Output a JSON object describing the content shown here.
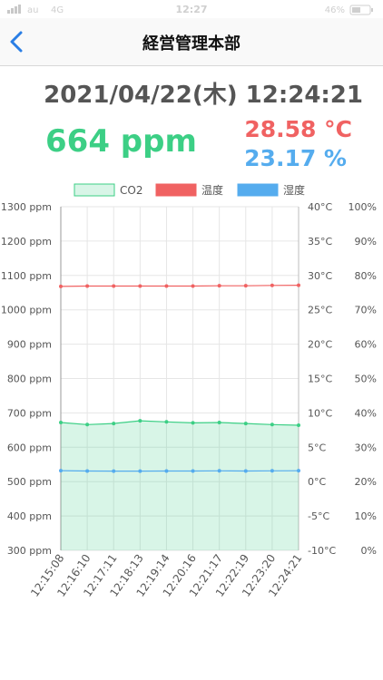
{
  "status_bar": {
    "carrier": "au",
    "network": "4G",
    "time": "12:27",
    "battery": "46%"
  },
  "nav": {
    "title": "経営管理本部"
  },
  "reading": {
    "datetime": "2021/04/22(木) 12:24:21",
    "co2": "664 ppm",
    "temperature": "28.58 °C",
    "humidity": "23.17 %"
  },
  "colors": {
    "co2": "#3ccf85",
    "temperature": "#f06262",
    "humidity": "#55acee",
    "back": "#2a7ee5"
  },
  "icons": {
    "back": "chevron-left-icon"
  },
  "chart_data": {
    "type": "line",
    "x": [
      "12:15:08",
      "12:16:10",
      "12:17:11",
      "12:18:13",
      "12:19:14",
      "12:20:16",
      "12:21:17",
      "12:22:19",
      "12:23:20",
      "12:24:21"
    ],
    "series": [
      {
        "name": "CO2",
        "axis": "ppm",
        "fill": true,
        "values": [
          672,
          666,
          669,
          677,
          674,
          671,
          672,
          669,
          666,
          664
        ]
      },
      {
        "name": "温度",
        "axis": "celsius",
        "values": [
          28.4,
          28.45,
          28.45,
          28.45,
          28.45,
          28.45,
          28.5,
          28.5,
          28.55,
          28.58
        ]
      },
      {
        "name": "湿度",
        "axis": "percent",
        "values": [
          23.2,
          23.1,
          23.05,
          23.05,
          23.1,
          23.1,
          23.15,
          23.1,
          23.15,
          23.17
        ]
      }
    ],
    "y_axes": {
      "ppm": {
        "range": [
          300,
          1300
        ],
        "ticks": [
          "1300 ppm",
          "1200 ppm",
          "1100 ppm",
          "1000 ppm",
          "900 ppm",
          "800 ppm",
          "700 ppm",
          "600 ppm",
          "500 ppm",
          "400 ppm",
          "300 ppm"
        ]
      },
      "celsius": {
        "range": [
          -10,
          40
        ],
        "ticks": [
          "40°C",
          "35°C",
          "30°C",
          "25°C",
          "20°C",
          "15°C",
          "10°C",
          "5°C",
          "0°C",
          "-5°C",
          "-10°C"
        ]
      },
      "percent": {
        "range": [
          0,
          100
        ],
        "ticks": [
          "100%",
          "90%",
          "80%",
          "70%",
          "60%",
          "50%",
          "40%",
          "30%",
          "20%",
          "10%",
          "0%"
        ]
      }
    },
    "legend": "top-center",
    "grid": true
  }
}
